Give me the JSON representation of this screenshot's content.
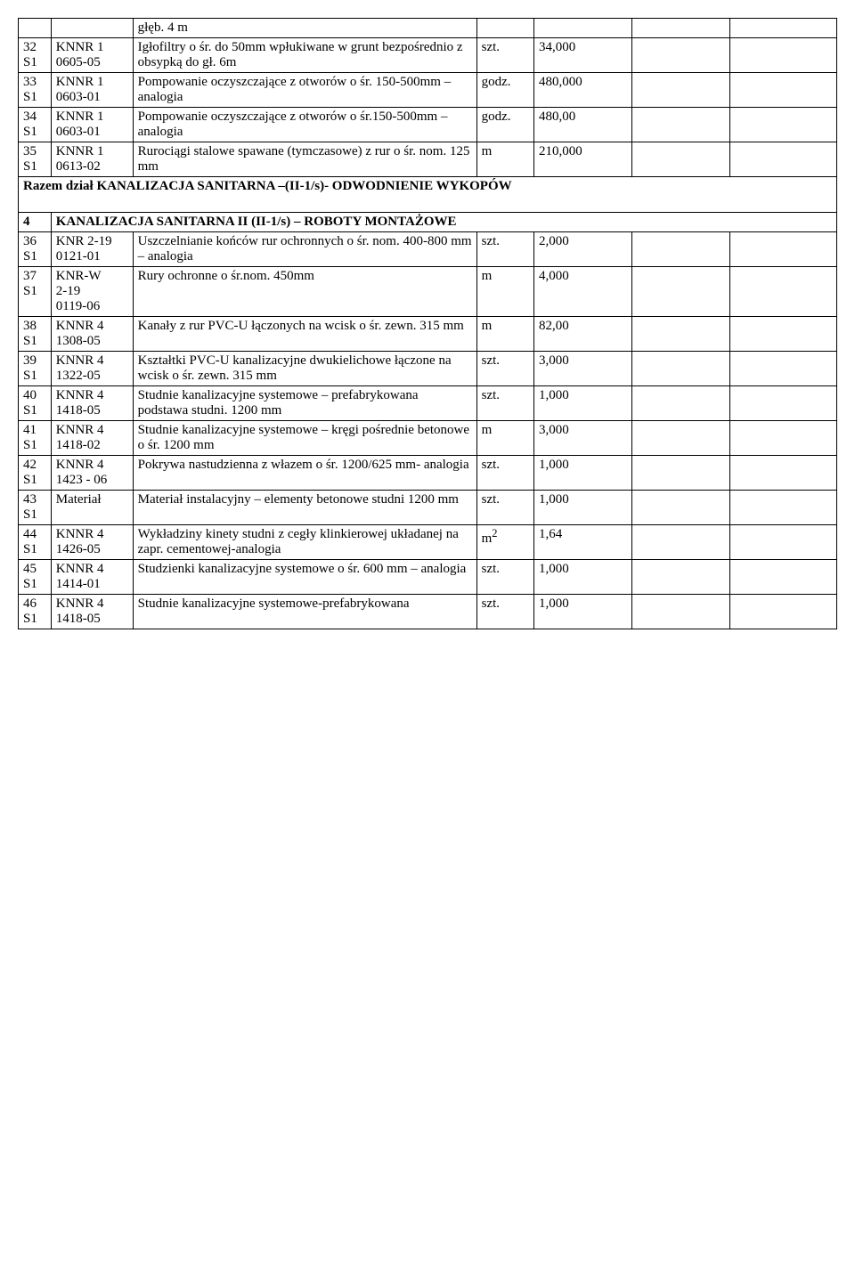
{
  "table": {
    "col_widths": [
      "4%",
      "10%",
      "42%",
      "7%",
      "12%",
      "12%",
      "13%"
    ],
    "rows": [
      {
        "type": "row",
        "num": "",
        "code": "",
        "desc": "głęb. 4 m",
        "unit": "",
        "qty": ""
      },
      {
        "type": "row",
        "num": "32\nS1",
        "code": "KNNR 1\n0605-05",
        "desc": "Igłofiltry o śr. do 50mm wpłukiwane w grunt bezpośrednio z obsypką do gł. 6m",
        "unit": "szt.",
        "qty": "34,000"
      },
      {
        "type": "row",
        "num": "33\nS1",
        "code": "KNNR 1\n0603-01",
        "desc": "Pompowanie oczyszczające z otworów o śr. 150-500mm – analogia",
        "unit": "godz.",
        "qty": "480,000"
      },
      {
        "type": "row",
        "num": "34\nS1",
        "code": "KNNR 1\n0603-01",
        "desc": "Pompowanie oczyszczające z otworów o śr.150-500mm – analogia",
        "unit": "godz.",
        "qty": "480,00"
      },
      {
        "type": "row",
        "num": "35\nS1",
        "code": "KNNR 1\n0613-02",
        "desc": "Rurociągi stalowe spawane (tymczasowe) z rur o śr. nom. 125 mm",
        "unit": "m",
        "qty": "210,000"
      },
      {
        "type": "section_full",
        "text": "Razem dział KANALIZACJA SANITARNA –(II-1/s)- ODWODNIENIE WYKOPÓW"
      },
      {
        "type": "spacer"
      },
      {
        "type": "section_header",
        "num": "4",
        "text": "KANALIZACJA SANITARNA II (II-1/s) – ROBOTY MONTAŻOWE"
      },
      {
        "type": "row",
        "num": "36\nS1",
        "code": "KNR 2-19\n0121-01",
        "desc": "Uszczelnianie końców rur ochronnych o śr. nom. 400-800 mm – analogia",
        "unit": "szt.",
        "qty": "2,000"
      },
      {
        "type": "row",
        "num": "37\nS1",
        "code": "KNR-W\n2-19\n0119-06",
        "desc": "Rury ochronne o śr.nom. 450mm",
        "unit": "m",
        "qty": "4,000"
      },
      {
        "type": "row",
        "num": "38\nS1",
        "code": "KNNR 4\n1308-05",
        "desc": "Kanały z rur PVC-U łączonych na wcisk o śr. zewn. 315 mm",
        "unit": "m",
        "qty": "82,00"
      },
      {
        "type": "row",
        "num": "39\nS1",
        "code": "KNNR 4\n1322-05",
        "desc": "Kształtki PVC-U kanalizacyjne dwukielichowe łączone na wcisk o śr. zewn. 315 mm",
        "unit": "szt.",
        "qty": "3,000"
      },
      {
        "type": "row",
        "num": "40\nS1",
        "code": "KNNR 4\n1418-05",
        "desc": "Studnie kanalizacyjne systemowe – prefabrykowana podstawa studni. 1200 mm",
        "unit": "szt.",
        "qty": "1,000"
      },
      {
        "type": "row",
        "num": "41\nS1",
        "code": "KNNR 4\n1418-02",
        "desc": "Studnie kanalizacyjne systemowe – kręgi pośrednie betonowe o śr. 1200 mm",
        "unit": "m",
        "qty": "3,000"
      },
      {
        "type": "row",
        "num": "42\nS1",
        "code": "KNNR 4\n1423 - 06",
        "desc": "Pokrywa nastudzienna z włazem o śr. 1200/625 mm- analogia",
        "unit": "szt.",
        "qty": "1,000"
      },
      {
        "type": "row",
        "num": "43\nS1",
        "code": "Materiał",
        "desc": "Materiał instalacyjny – elementy betonowe studni 1200 mm",
        "unit": "szt.",
        "qty": "1,000"
      },
      {
        "type": "row",
        "num": "44\nS1",
        "code": "KNNR 4\n1426-05",
        "desc": "Wykładziny kinety studni z cegły klinkierowej układanej na zapr. cementowej-analogia",
        "unit": "m²",
        "qty": "1,64",
        "unit_raw": "m",
        "sup": "2"
      },
      {
        "type": "row",
        "num": "45\nS1",
        "code": "KNNR 4\n1414-01",
        "desc": "Studzienki kanalizacyjne systemowe o śr. 600 mm – analogia",
        "unit": "szt.",
        "qty": "1,000"
      },
      {
        "type": "row",
        "num": "46\nS1",
        "code": "KNNR 4\n1418-05",
        "desc": "Studnie kanalizacyjne systemowe-prefabrykowana",
        "unit": "szt.",
        "qty": "1,000"
      }
    ]
  }
}
